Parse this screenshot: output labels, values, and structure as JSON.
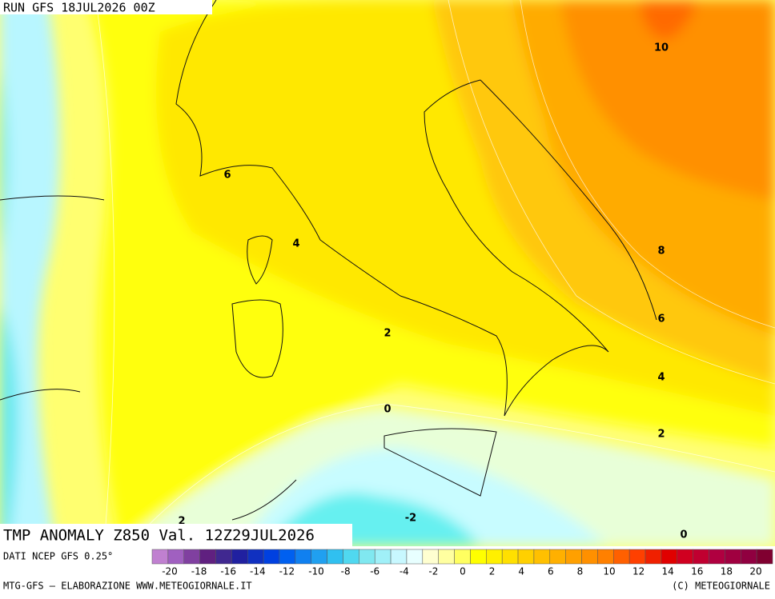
{
  "header": {
    "run": "RUN GFS 18JUL2026 00Z"
  },
  "contour_labels": [
    "10",
    "6",
    "4",
    "8",
    "6",
    "2",
    "4",
    "0",
    "2",
    "-2",
    "0",
    "2"
  ],
  "title": "TMP ANOMALY Z850 Val. 12Z29JUL2026",
  "source": "DATI NCEP GFS 0.25°",
  "colorbar": {
    "ticks": [
      -20,
      -18,
      -16,
      -14,
      -12,
      -10,
      -8,
      -6,
      -4,
      -2,
      0,
      2,
      4,
      6,
      8,
      10,
      12,
      14,
      16,
      18,
      20
    ],
    "colors": [
      "#c080d0",
      "#a060c0",
      "#8040a0",
      "#602080",
      "#402890",
      "#2020a0",
      "#1030c0",
      "#0040e0",
      "#0060f0",
      "#1080f0",
      "#20a0f0",
      "#30c0f0",
      "#50d8f0",
      "#80e8f0",
      "#a0f0f8",
      "#c8f8ff",
      "#e8ffff",
      "#ffffd0",
      "#ffffa0",
      "#ffff60",
      "#ffff00",
      "#fff000",
      "#ffe000",
      "#ffd000",
      "#ffc000",
      "#ffb000",
      "#ffa000",
      "#ff9000",
      "#ff8000",
      "#ff6000",
      "#ff4000",
      "#f02000",
      "#e00000",
      "#d00020",
      "#c00030",
      "#b00040",
      "#a00040",
      "#900040",
      "#800030"
    ]
  },
  "footer": {
    "left": "MTG-GFS — ELABORAZIONE WWW.METEOGIORNALE.IT",
    "right": "(C) METEOGIORNALE"
  }
}
